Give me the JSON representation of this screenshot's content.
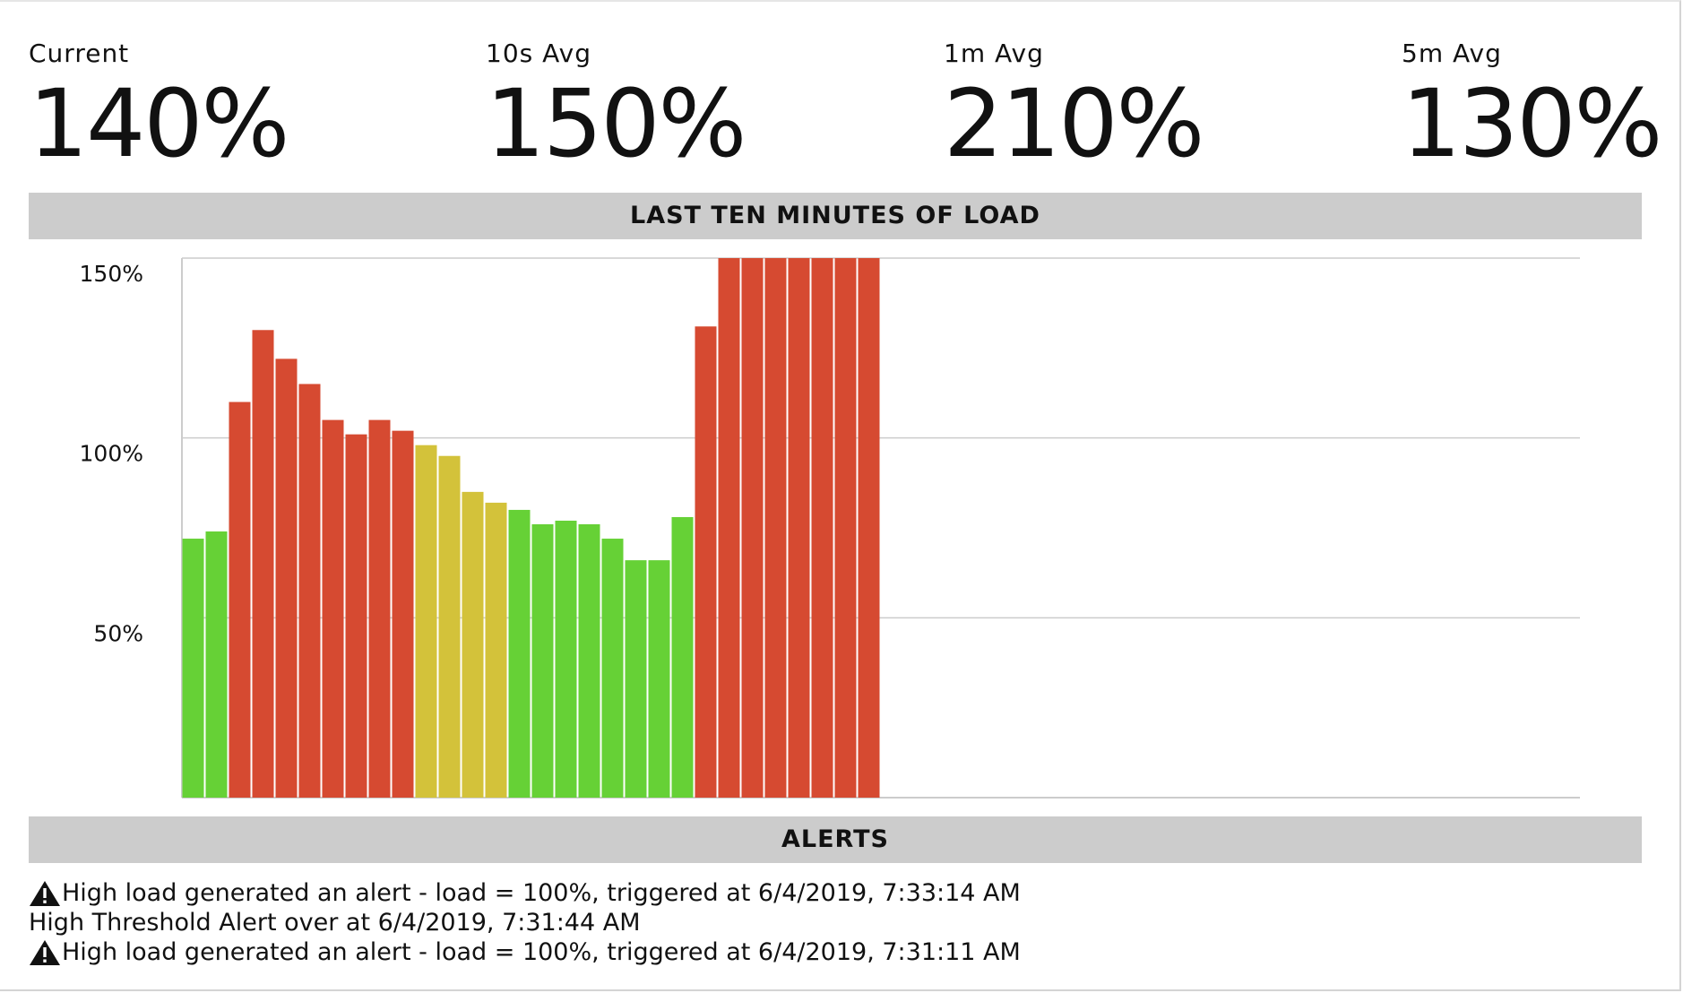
{
  "stats": [
    {
      "label": "Current",
      "value": "140%"
    },
    {
      "label": "10s Avg",
      "value": "150%"
    },
    {
      "label": "1m Avg",
      "value": "210%"
    },
    {
      "label": "5m Avg",
      "value": "130%"
    }
  ],
  "chart_section_title": "LAST TEN MINUTES OF LOAD",
  "alerts_section_title": "ALERTS",
  "colors": {
    "ok": "#66d136",
    "warn": "#d3c23a",
    "high": "#d64a31",
    "grid": "#cccccc",
    "bar_header": "#cccccc"
  },
  "chart_data": {
    "type": "bar",
    "ytick_labels": [
      "150%",
      "100%",
      "50%"
    ],
    "yticks": [
      150,
      100,
      50
    ],
    "ylim": [
      0,
      150
    ],
    "grid": true,
    "values": [
      72,
      74,
      110,
      130,
      122,
      115,
      105,
      101,
      105,
      102,
      98,
      95,
      85,
      82,
      80,
      76,
      77,
      76,
      72,
      66,
      66,
      78,
      131,
      150,
      150,
      150,
      150,
      150,
      150,
      150
    ],
    "levels": [
      "ok",
      "ok",
      "high",
      "high",
      "high",
      "high",
      "high",
      "high",
      "high",
      "high",
      "warn",
      "warn",
      "warn",
      "warn",
      "ok",
      "ok",
      "ok",
      "ok",
      "ok",
      "ok",
      "ok",
      "ok",
      "high",
      "high",
      "high",
      "high",
      "high",
      "high",
      "high",
      "high"
    ],
    "slots": 60
  },
  "alerts": [
    {
      "icon": "warning-icon",
      "text": "High load generated an alert - load = 100%, triggered at 6/4/2019, 7:33:14 AM"
    },
    {
      "icon": "",
      "text": "High Threshold Alert over at 6/4/2019, 7:31:44 AM"
    },
    {
      "icon": "warning-icon",
      "text": "High load generated an alert - load = 100%, triggered at 6/4/2019, 7:31:11 AM"
    }
  ]
}
